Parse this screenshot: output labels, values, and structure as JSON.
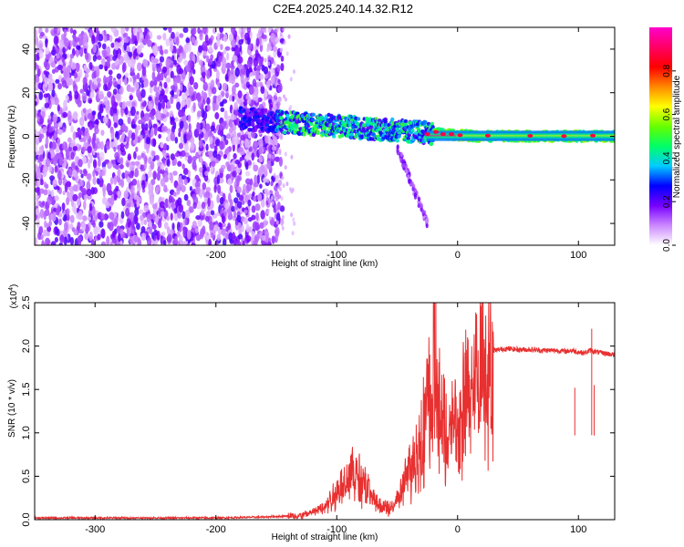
{
  "title": "C2E4.2025.240.14.32.R12",
  "chart_data": [
    {
      "type": "heatmap",
      "xlabel": "Height of straight line (km)",
      "ylabel": "Frequency (Hz)",
      "xlim": [
        -350,
        130
      ],
      "ylim": [
        -50,
        50
      ],
      "xticks": [
        -300,
        -200,
        -100,
        0,
        100
      ],
      "xtick_labels": [
        "-300",
        "-200",
        "-100",
        "0",
        "100"
      ],
      "yticks": [
        -40,
        -20,
        0,
        20,
        40
      ],
      "ytick_labels": [
        "-40",
        "-20",
        "0",
        "20",
        "40"
      ],
      "colorbar": {
        "label": "Normalized spectral amplitude",
        "range": [
          0,
          1
        ],
        "ticks": [
          0,
          0.2,
          0.4,
          0.6,
          0.8
        ],
        "tick_labels": [
          "0.0",
          "0.2",
          "0.4",
          "0.6",
          "0.8"
        ],
        "colors": [
          "#ffffff",
          "#cc88ff",
          "#7700ff",
          "#0000ff",
          "#00ccff",
          "#00ff66",
          "#66ff00",
          "#ffff00",
          "#ff8800",
          "#ff0000",
          "#ff0066",
          "#ff00cc"
        ]
      },
      "regions": [
        {
          "name": "noise",
          "x_range": [
            -350,
            -155
          ],
          "f_range": [
            -50,
            50
          ],
          "level": 0.15
        },
        {
          "name": "trace",
          "x_range": [
            -180,
            130
          ],
          "f_center_start": 8,
          "f_center_end": 0,
          "level": 0.5
        },
        {
          "name": "branch",
          "x_range": [
            -50,
            -25
          ],
          "f_range": [
            -40,
            -5
          ],
          "level": 0.2
        }
      ]
    },
    {
      "type": "line",
      "xlabel": "Height of straight line (km)",
      "ylabel": "SNR (10 * v/v)",
      "scale_label": "(x10^4)",
      "xlim": [
        -350,
        130
      ],
      "ylim": [
        0,
        2.5
      ],
      "xticks": [
        -300,
        -200,
        -100,
        0,
        100
      ],
      "xtick_labels": [
        "-300",
        "-200",
        "-100",
        "0",
        "100"
      ],
      "yticks": [
        0,
        0.5,
        1.0,
        1.5,
        2.0,
        2.5
      ],
      "ytick_labels": [
        "0.0",
        "0.5",
        "1.0",
        "1.5",
        "2.0",
        "2.5"
      ],
      "series": [
        {
          "name": "SNR",
          "color": "#e83030",
          "x": [
            -350,
            -300,
            -250,
            -200,
            -160,
            -130,
            -115,
            -105,
            -95,
            -88,
            -82,
            -76,
            -70,
            -62,
            -55,
            -48,
            -42,
            -36,
            -30,
            -26,
            -22,
            -20,
            -16,
            -12,
            -8,
            -4,
            0,
            4,
            8,
            12,
            16,
            20,
            25,
            30,
            35,
            40,
            50,
            60,
            70,
            80,
            90,
            95,
            100,
            105,
            110,
            115,
            120,
            130
          ],
          "y": [
            0.02,
            0.02,
            0.02,
            0.02,
            0.03,
            0.05,
            0.12,
            0.25,
            0.45,
            0.6,
            0.55,
            0.45,
            0.25,
            0.15,
            0.15,
            0.3,
            0.55,
            0.75,
            1.0,
            1.4,
            1.6,
            2.0,
            1.45,
            1.2,
            1.0,
            1.4,
            1.1,
            1.4,
            1.6,
            1.75,
            1.82,
            1.88,
            1.92,
            1.95,
            1.96,
            1.97,
            1.96,
            1.96,
            1.95,
            1.95,
            1.94,
            1.95,
            1.93,
            1.92,
            1.95,
            1.93,
            1.92,
            1.9
          ]
        }
      ],
      "spikes": [
        {
          "x": -19,
          "y": 2.5
        },
        {
          "x": -23,
          "y": 1.9
        },
        {
          "x": 97,
          "y": 1.52
        },
        {
          "x": 111,
          "y": 2.2
        },
        {
          "x": 113,
          "y": 1.55
        }
      ]
    }
  ]
}
